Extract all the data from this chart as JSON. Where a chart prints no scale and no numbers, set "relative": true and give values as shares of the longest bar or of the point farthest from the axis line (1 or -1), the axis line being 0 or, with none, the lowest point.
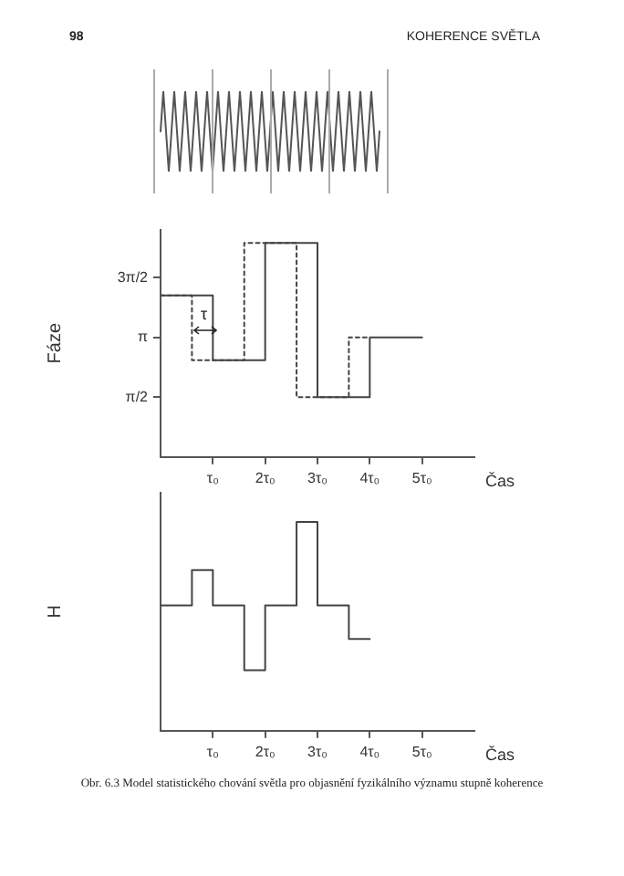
{
  "chart_data": [
    {
      "type": "line",
      "relative": true,
      "color": "#555555",
      "annotations": [
        "98",
        "KOHERENCE SVĚTLA"
      ],
      "categories": [
        null,
        null,
        null,
        null,
        null,
        null,
        null,
        null,
        null,
        null,
        null,
        null,
        null,
        null,
        null,
        null,
        null,
        null,
        null,
        null,
        null,
        null,
        null,
        null,
        null,
        null,
        null,
        null,
        null,
        null,
        null,
        null,
        null,
        null,
        null,
        null,
        null,
        null,
        null,
        null,
        null,
        null,
        null,
        null,
        null,
        null,
        null,
        null,
        null,
        null,
        null,
        null,
        null,
        null,
        null,
        null,
        null,
        null,
        null,
        null,
        null,
        null,
        null,
        null,
        null,
        null,
        null,
        null,
        null,
        null,
        null,
        null,
        null,
        null,
        null,
        null,
        null,
        null,
        null,
        null,
        null
      ],
      "values": [
        0.5,
        1,
        0.5,
        0,
        0.5,
        1,
        0.5,
        0,
        0.5,
        1,
        0.5,
        0,
        0.5,
        1,
        0.5,
        0,
        0.5,
        1,
        0.5,
        0,
        0.5,
        1,
        0.5,
        0,
        0.5,
        1,
        0.5,
        0,
        0.5,
        1,
        0.5,
        0,
        0.5,
        1,
        0.5,
        0,
        0.5,
        1,
        0.5,
        0,
        0.5,
        1,
        0.5,
        0,
        0.5,
        1,
        0.5,
        0,
        0.5,
        1,
        0.5,
        0,
        0.5,
        1,
        0.5,
        0,
        0.5,
        1,
        0.5,
        0,
        0.5,
        1,
        0.5,
        0,
        0.5,
        1,
        0.5,
        0,
        0.5,
        1,
        0.5,
        0,
        0.5,
        1,
        0.5,
        0,
        0.5,
        1,
        0.5,
        0,
        0.5
      ]
    },
    {
      "type": "step",
      "ylabel": "Fáze",
      "xlabel": "Čas",
      "xlim": [
        0,
        6
      ],
      "ylim": [
        0,
        5.97
      ],
      "xticks": [
        {
          "value": 1,
          "label": "τ₀"
        },
        {
          "value": 2,
          "label": "2τ₀"
        },
        {
          "value": 3,
          "label": "3τ₀"
        },
        {
          "value": 4,
          "label": "4τ₀"
        },
        {
          "value": 5,
          "label": "5τ₀"
        }
      ],
      "yticks": [
        {
          "value": 1.571,
          "label": "π/2"
        },
        {
          "value": 3.142,
          "label": "π"
        },
        {
          "value": 4.712,
          "label": "3π/2"
        }
      ],
      "series": [
        {
          "color": "#444444",
          "line_style": "solid",
          "x": [
            0,
            1,
            2,
            3,
            4,
            5
          ],
          "values": [
            4.24,
            2.54,
            5.62,
            1.57,
            3.14,
            3.14
          ]
        },
        {
          "color": "#444444",
          "line_style": "dotted",
          "x": [
            0,
            0.6,
            1.6,
            2.6,
            3.6,
            4
          ],
          "values": [
            4.24,
            2.54,
            5.62,
            1.57,
            3.14,
            3.14
          ]
        }
      ],
      "annotations": [
        "τ"
      ]
    },
    {
      "type": "step",
      "relative": true,
      "ylabel": "H",
      "xlabel": "Čas",
      "xlim": [
        0,
        6
      ],
      "color": "#444444",
      "xticks": [
        {
          "value": 1,
          "label": "τ₀"
        },
        {
          "value": 2,
          "label": "2τ₀"
        },
        {
          "value": 3,
          "label": "3τ₀"
        },
        {
          "value": 4,
          "label": "4τ₀"
        },
        {
          "value": 5,
          "label": "5τ₀"
        }
      ],
      "x": [
        0,
        0.6,
        1,
        1.6,
        2,
        2.6,
        3,
        3.6,
        4
      ],
      "values": [
        0.6,
        0.77,
        0.6,
        0.29,
        0.6,
        1,
        0.6,
        0.44,
        0.44
      ],
      "annotations": [
        "Obr. 6.3 Model statistického chování světla pro objasnění fyzikálního významu stupně koherence"
      ]
    }
  ]
}
